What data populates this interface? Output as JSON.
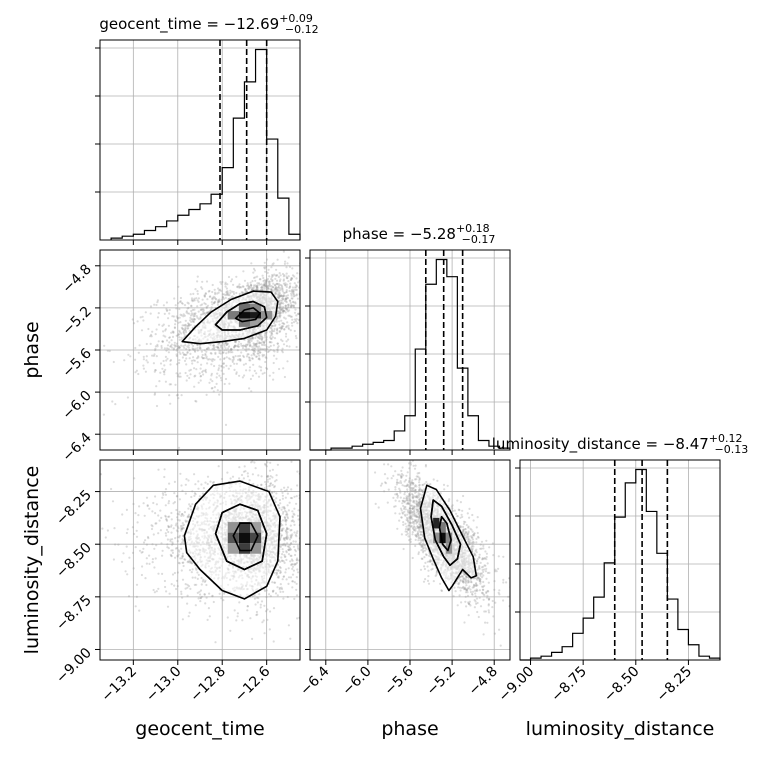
{
  "chart_data": {
    "type": "corner",
    "parameters": [
      "geocent_time",
      "phase",
      "luminosity_distance"
    ],
    "colors": {
      "axes": "#000000",
      "grid": "#b0b0b0",
      "scatter": "#9a9a9a",
      "contour": "#000000",
      "hist": "#000000"
    },
    "titles": [
      {
        "param": "geocent_time",
        "prefix": "geocent_time = ",
        "median": "−12.69",
        "plus": "+0.09",
        "minus": "−0.12"
      },
      {
        "param": "phase",
        "prefix": "phase = ",
        "median": "−5.28",
        "plus": "+0.18",
        "minus": "−0.17"
      },
      {
        "param": "luminosity_distance",
        "prefix": "luminosity_distance = ",
        "median": "−8.47",
        "plus": "+0.12",
        "minus": "−0.13"
      }
    ],
    "axis_labels": {
      "x": [
        "geocent_time",
        "phase",
        "luminosity_distance"
      ],
      "y": [
        "phase",
        "luminosity_distance"
      ]
    },
    "ranges": {
      "geocent_time": [
        -13.35,
        -12.45
      ],
      "phase": [
        -6.55,
        -4.65
      ],
      "luminosity_distance": [
        -9.05,
        -8.1
      ]
    },
    "ticks": {
      "geocent_time": {
        "values": [
          -13.2,
          -13.0,
          -12.8,
          -12.6
        ],
        "labels": [
          "−13.2",
          "−13.0",
          "−12.8",
          "−12.6"
        ]
      },
      "phase": {
        "values": [
          -6.4,
          -6.0,
          -5.6,
          -5.2,
          -4.8
        ],
        "labels": [
          "−6.4",
          "−6.0",
          "−5.6",
          "−5.2",
          "−4.8"
        ]
      },
      "luminosity_distance": {
        "values": [
          -9.0,
          -8.75,
          -8.5,
          -8.25
        ],
        "labels": [
          "−9.00",
          "−8.75",
          "−8.50",
          "−8.25"
        ]
      }
    },
    "quantiles": {
      "geocent_time": [
        -12.81,
        -12.69,
        -12.6
      ],
      "phase": [
        -5.45,
        -5.28,
        -5.1
      ],
      "luminosity_distance": [
        -8.6,
        -8.47,
        -8.35
      ]
    },
    "histograms": {
      "geocent_time": {
        "edges": [
          -13.3,
          -13.25,
          -13.2,
          -13.15,
          -13.1,
          -13.05,
          -13.0,
          -12.95,
          -12.9,
          -12.85,
          -12.8,
          -12.75,
          -12.7,
          -12.65,
          -12.6,
          -12.55,
          -12.5,
          -12.45
        ],
        "counts": [
          0.01,
          0.02,
          0.03,
          0.05,
          0.07,
          0.1,
          0.13,
          0.16,
          0.19,
          0.24,
          0.38,
          0.64,
          0.83,
          1.0,
          0.53,
          0.22,
          0.03
        ]
      },
      "phase": {
        "edges": [
          -6.55,
          -6.45,
          -6.35,
          -6.25,
          -6.15,
          -6.05,
          -5.95,
          -5.85,
          -5.75,
          -5.65,
          -5.55,
          -5.45,
          -5.35,
          -5.25,
          -5.15,
          -5.05,
          -4.95,
          -4.85,
          -4.75,
          -4.65
        ],
        "counts": [
          0.0,
          0.0,
          0.01,
          0.01,
          0.02,
          0.03,
          0.04,
          0.05,
          0.1,
          0.18,
          0.53,
          0.87,
          1.0,
          0.91,
          0.43,
          0.18,
          0.05,
          0.02,
          0.01
        ]
      },
      "luminosity_distance": {
        "edges": [
          -9.05,
          -9.0,
          -8.95,
          -8.9,
          -8.85,
          -8.8,
          -8.75,
          -8.7,
          -8.65,
          -8.6,
          -8.55,
          -8.5,
          -8.45,
          -8.4,
          -8.35,
          -8.3,
          -8.25,
          -8.2,
          -8.15,
          -8.1
        ],
        "counts": [
          0.0,
          0.01,
          0.02,
          0.04,
          0.07,
          0.14,
          0.22,
          0.33,
          0.51,
          0.75,
          0.93,
          1.0,
          0.78,
          0.56,
          0.32,
          0.16,
          0.08,
          0.02,
          0.01
        ]
      }
    },
    "pairs": [
      {
        "x": "geocent_time",
        "y": "phase",
        "center": [
          -12.68,
          -5.27
        ],
        "spread": [
          0.14,
          0.21
        ],
        "rho": 0.45,
        "samples": 2600,
        "contours": [
          [
            [
              -12.98,
              -5.52
            ],
            [
              -12.92,
              -5.38
            ],
            [
              -12.85,
              -5.24
            ],
            [
              -12.76,
              -5.12
            ],
            [
              -12.66,
              -5.04
            ],
            [
              -12.58,
              -5.05
            ],
            [
              -12.55,
              -5.14
            ],
            [
              -12.56,
              -5.28
            ],
            [
              -12.6,
              -5.41
            ],
            [
              -12.7,
              -5.49
            ],
            [
              -12.8,
              -5.52
            ],
            [
              -12.9,
              -5.54
            ],
            [
              -12.98,
              -5.52
            ]
          ],
          [
            [
              -12.83,
              -5.36
            ],
            [
              -12.78,
              -5.24
            ],
            [
              -12.72,
              -5.16
            ],
            [
              -12.66,
              -5.14
            ],
            [
              -12.61,
              -5.19
            ],
            [
              -12.6,
              -5.29
            ],
            [
              -12.64,
              -5.37
            ],
            [
              -12.72,
              -5.41
            ],
            [
              -12.8,
              -5.41
            ],
            [
              -12.83,
              -5.36
            ]
          ],
          [
            [
              -12.74,
              -5.3
            ],
            [
              -12.7,
              -5.22
            ],
            [
              -12.66,
              -5.2
            ],
            [
              -12.63,
              -5.25
            ],
            [
              -12.65,
              -5.31
            ],
            [
              -12.71,
              -5.33
            ],
            [
              -12.74,
              -5.3
            ]
          ]
        ],
        "cells": [
          {
            "x": -12.7,
            "y": -5.27,
            "w": 0.05,
            "h": 0.08,
            "shade": 1.0
          },
          {
            "x": -12.65,
            "y": -5.27,
            "w": 0.05,
            "h": 0.08,
            "shade": 0.95
          },
          {
            "x": -12.7,
            "y": -5.2,
            "w": 0.05,
            "h": 0.08,
            "shade": 0.6
          },
          {
            "x": -12.7,
            "y": -5.34,
            "w": 0.05,
            "h": 0.08,
            "shade": 0.55
          },
          {
            "x": -12.75,
            "y": -5.27,
            "w": 0.05,
            "h": 0.08,
            "shade": 0.55
          },
          {
            "x": -12.6,
            "y": -5.27,
            "w": 0.05,
            "h": 0.08,
            "shade": 0.45
          },
          {
            "x": -12.65,
            "y": -5.2,
            "w": 0.05,
            "h": 0.08,
            "shade": 0.5
          },
          {
            "x": -12.65,
            "y": -5.34,
            "w": 0.05,
            "h": 0.08,
            "shade": 0.4
          }
        ]
      },
      {
        "x": "geocent_time",
        "y": "luminosity_distance",
        "center": [
          -12.69,
          -8.47
        ],
        "spread": [
          0.14,
          0.14
        ],
        "rho": 0.0,
        "samples": 2600,
        "contours": [
          [
            [
              -12.97,
              -8.46
            ],
            [
              -12.92,
              -8.31
            ],
            [
              -12.84,
              -8.22
            ],
            [
              -12.72,
              -8.2
            ],
            [
              -12.59,
              -8.25
            ],
            [
              -12.54,
              -8.37
            ],
            [
              -12.55,
              -8.58
            ],
            [
              -12.6,
              -8.7
            ],
            [
              -12.7,
              -8.76
            ],
            [
              -12.8,
              -8.72
            ],
            [
              -12.9,
              -8.62
            ],
            [
              -12.96,
              -8.54
            ],
            [
              -12.97,
              -8.46
            ]
          ],
          [
            [
              -12.83,
              -8.45
            ],
            [
              -12.8,
              -8.35
            ],
            [
              -12.72,
              -8.31
            ],
            [
              -12.64,
              -8.34
            ],
            [
              -12.6,
              -8.45
            ],
            [
              -12.62,
              -8.58
            ],
            [
              -12.7,
              -8.62
            ],
            [
              -12.78,
              -8.58
            ],
            [
              -12.83,
              -8.45
            ]
          ],
          [
            [
              -12.75,
              -8.46
            ],
            [
              -12.72,
              -8.4
            ],
            [
              -12.67,
              -8.4
            ],
            [
              -12.64,
              -8.46
            ],
            [
              -12.67,
              -8.53
            ],
            [
              -12.72,
              -8.53
            ],
            [
              -12.75,
              -8.46
            ]
          ]
        ],
        "cells": [
          {
            "x": -12.7,
            "y": -8.47,
            "w": 0.05,
            "h": 0.05,
            "shade": 1.0
          },
          {
            "x": -12.7,
            "y": -8.42,
            "w": 0.05,
            "h": 0.05,
            "shade": 0.8
          },
          {
            "x": -12.7,
            "y": -8.52,
            "w": 0.05,
            "h": 0.05,
            "shade": 0.8
          },
          {
            "x": -12.75,
            "y": -8.47,
            "w": 0.05,
            "h": 0.05,
            "shade": 0.7
          },
          {
            "x": -12.65,
            "y": -8.47,
            "w": 0.05,
            "h": 0.05,
            "shade": 0.75
          },
          {
            "x": -12.75,
            "y": -8.42,
            "w": 0.05,
            "h": 0.05,
            "shade": 0.45
          },
          {
            "x": -12.65,
            "y": -8.52,
            "w": 0.05,
            "h": 0.05,
            "shade": 0.45
          },
          {
            "x": -12.75,
            "y": -8.52,
            "w": 0.05,
            "h": 0.05,
            "shade": 0.4
          },
          {
            "x": -12.65,
            "y": -8.42,
            "w": 0.05,
            "h": 0.05,
            "shade": 0.4
          }
        ]
      },
      {
        "x": "phase",
        "y": "luminosity_distance",
        "center": [
          -5.28,
          -8.47
        ],
        "spread": [
          0.2,
          0.13
        ],
        "rho": -0.72,
        "samples": 2600,
        "contours": [
          [
            [
              -5.5,
              -8.33
            ],
            [
              -5.44,
              -8.22
            ],
            [
              -5.35,
              -8.24
            ],
            [
              -5.22,
              -8.34
            ],
            [
              -5.1,
              -8.46
            ],
            [
              -5.0,
              -8.56
            ],
            [
              -4.97,
              -8.65
            ],
            [
              -5.02,
              -8.66
            ],
            [
              -5.1,
              -8.62
            ],
            [
              -5.2,
              -8.7
            ],
            [
              -5.23,
              -8.72
            ],
            [
              -5.3,
              -8.66
            ],
            [
              -5.38,
              -8.57
            ],
            [
              -5.46,
              -8.47
            ],
            [
              -5.5,
              -8.33
            ]
          ],
          [
            [
              -5.4,
              -8.37
            ],
            [
              -5.38,
              -8.29
            ],
            [
              -5.3,
              -8.32
            ],
            [
              -5.2,
              -8.41
            ],
            [
              -5.12,
              -8.5
            ],
            [
              -5.15,
              -8.57
            ],
            [
              -5.22,
              -8.6
            ],
            [
              -5.28,
              -8.56
            ],
            [
              -5.36,
              -8.48
            ],
            [
              -5.4,
              -8.37
            ]
          ],
          [
            [
              -5.32,
              -8.42
            ],
            [
              -5.3,
              -8.37
            ],
            [
              -5.25,
              -8.4
            ],
            [
              -5.21,
              -8.48
            ],
            [
              -5.24,
              -8.53
            ],
            [
              -5.29,
              -8.5
            ],
            [
              -5.32,
              -8.42
            ]
          ]
        ],
        "cells": [
          {
            "x": -5.35,
            "y": -8.4,
            "w": 0.06,
            "h": 0.05,
            "shade": 0.9
          },
          {
            "x": -5.29,
            "y": -8.47,
            "w": 0.06,
            "h": 0.05,
            "shade": 1.0
          },
          {
            "x": -5.29,
            "y": -8.42,
            "w": 0.06,
            "h": 0.05,
            "shade": 0.55
          },
          {
            "x": -5.23,
            "y": -8.47,
            "w": 0.06,
            "h": 0.05,
            "shade": 0.5
          },
          {
            "x": -5.35,
            "y": -8.47,
            "w": 0.06,
            "h": 0.05,
            "shade": 0.45
          },
          {
            "x": -5.23,
            "y": -8.52,
            "w": 0.06,
            "h": 0.05,
            "shade": 0.45
          }
        ]
      }
    ]
  }
}
